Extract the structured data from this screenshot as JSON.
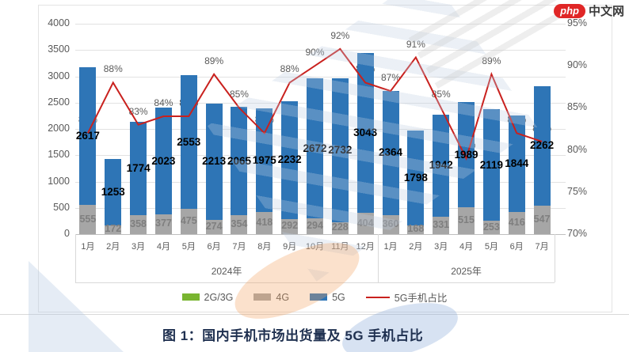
{
  "logo": {
    "badge": "php",
    "text": "中文网"
  },
  "caption": {
    "text": "图 1：国内手机市场出货量及 5G 手机占比"
  },
  "legend": [
    {
      "label": "2G/3G",
      "color": "#79b530",
      "type": "bar"
    },
    {
      "label": "4G",
      "color": "#a6a6a6",
      "type": "bar"
    },
    {
      "label": "5G",
      "color": "#2e75b6",
      "type": "bar"
    },
    {
      "label": "5G手机占比",
      "color": "#c9211e",
      "type": "line"
    }
  ],
  "chart_data": {
    "type": "combo: stacked bar + line",
    "categories": [
      "1月",
      "2月",
      "3月",
      "4月",
      "5月",
      "6月",
      "7月",
      "8月",
      "9月",
      "10月",
      "11月",
      "12月",
      "1月",
      "2月",
      "3月",
      "4月",
      "5月",
      "6月",
      "7月"
    ],
    "year_groups": [
      {
        "label": "2024年",
        "count": 12
      },
      {
        "label": "2025年",
        "count": 7
      }
    ],
    "series": [
      {
        "name": "2G/3G",
        "axis": "left",
        "values": [
          0,
          0,
          0,
          0,
          0,
          0,
          0,
          0,
          0,
          0,
          0,
          0,
          0,
          0,
          0,
          0,
          0,
          0,
          0
        ]
      },
      {
        "name": "4G",
        "axis": "left",
        "values": [
          555,
          172,
          358,
          377,
          475,
          274,
          354,
          418,
          292,
          294,
          228,
          404,
          360,
          168,
          331,
          515,
          253,
          416,
          547
        ]
      },
      {
        "name": "5G",
        "axis": "left",
        "values": [
          2617,
          1253,
          1774,
          2023,
          2553,
          2213,
          2065,
          1975,
          2232,
          2672,
          2732,
          3043,
          2364,
          1798,
          1942,
          1989,
          2119,
          1844,
          2262
        ]
      },
      {
        "name": "5G手机占比",
        "axis": "right",
        "format": "percent",
        "values": [
          82,
          88,
          83,
          84,
          84,
          89,
          85,
          82,
          88,
          90,
          92,
          88,
          87,
          91,
          85,
          79,
          89,
          82,
          81
        ]
      }
    ],
    "left_axis": {
      "min": 0,
      "max": 4000,
      "step": 500,
      "ticks": [
        "4000",
        "3500",
        "3000",
        "2500",
        "2000",
        "1500",
        "1000",
        "500",
        "0"
      ]
    },
    "right_axis": {
      "min": 70,
      "max": 95,
      "step": 5,
      "ticks": [
        "95%",
        "90%",
        "85%",
        "80%",
        "75%",
        "70%"
      ]
    },
    "grid": true,
    "legend_position": "bottom"
  }
}
